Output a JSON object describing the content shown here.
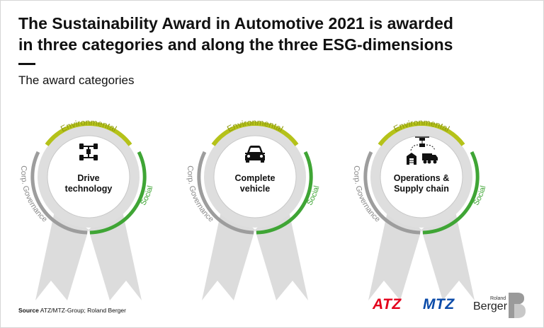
{
  "title_line1": "The Sustainability Award in Automotive 2021 is awarded",
  "title_line2": "in three categories and along the three ESG-dimensions",
  "subtitle": "The award categories",
  "dimensions": {
    "environmental": "Environmental",
    "social": "Social",
    "governance": "Corp. Governance"
  },
  "colors": {
    "environmental": "#b5c21a",
    "social": "#3fa535",
    "governance": "#9d9d9d",
    "ribbon": "#dcdcdc"
  },
  "categories": [
    {
      "label_line1": "Drive",
      "label_line2": "technology",
      "icon": "drivetrain-icon"
    },
    {
      "label_line1": "Complete",
      "label_line2": "vehicle",
      "icon": "car-icon"
    },
    {
      "label_line1": "Operations &",
      "label_line2": "Supply chain",
      "icon": "logistics-icon"
    }
  ],
  "source": {
    "label": "Source",
    "text": "ATZ/MTZ-Group; Roland Berger"
  },
  "logos": {
    "atz": "ATZ",
    "mtz": "MTZ",
    "roland": "Roland",
    "berger": "Berger"
  }
}
